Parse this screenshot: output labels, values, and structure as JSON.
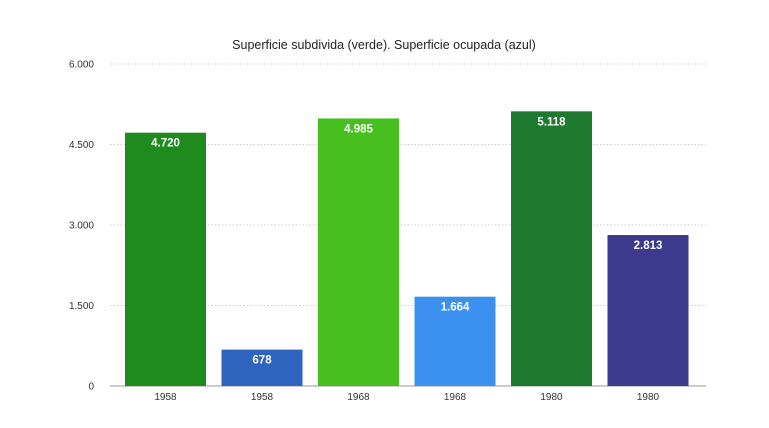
{
  "chart_data": {
    "type": "bar",
    "title": "Superficie subdivida (verde). Superficie ocupada (azul)",
    "categories": [
      "1958",
      "1958",
      "1968",
      "1968",
      "1980",
      "1980"
    ],
    "values": [
      4720,
      678,
      4985,
      1664,
      5118,
      2813
    ],
    "value_labels": [
      "4.720",
      "678",
      "4.985",
      "1.664",
      "5.118",
      "2.813"
    ],
    "bar_colors": [
      "#1f8b1f",
      "#2f63c0",
      "#46bf1f",
      "#3c90f0",
      "#1d7a2e",
      "#3d3a8e"
    ],
    "ylim": [
      0,
      6000
    ],
    "yticks": [
      0,
      1500,
      3000,
      4500,
      6000
    ],
    "ytick_labels": [
      "0",
      "1.500",
      "3.000",
      "4.500",
      "6.000"
    ],
    "xlabel": "",
    "ylabel": "",
    "grid": true
  }
}
